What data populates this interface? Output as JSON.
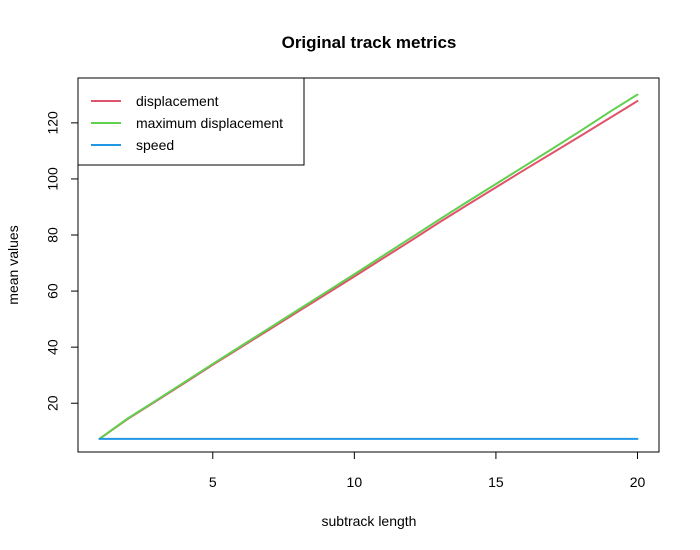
{
  "chart_data": {
    "type": "line",
    "title": "Original track metrics",
    "xlabel": "subtrack length",
    "ylabel": "mean values",
    "xlim": [
      0.24,
      20.76
    ],
    "ylim": [
      2.6,
      136.0
    ],
    "xticks": [
      5,
      10,
      15,
      20
    ],
    "yticks": [
      20,
      40,
      60,
      80,
      100,
      120
    ],
    "grid": false,
    "legend_position": "top-left",
    "x": [
      1,
      2,
      3,
      4,
      5,
      6,
      7,
      8,
      9,
      10,
      11,
      12,
      13,
      14,
      15,
      16,
      17,
      18,
      19,
      20
    ],
    "series": [
      {
        "name": "displacement",
        "color": "#DF536B",
        "values": [
          7.3,
          14.4,
          20.8,
          27.2,
          33.7,
          40.0,
          46.3,
          52.6,
          58.9,
          65.2,
          71.6,
          78.0,
          84.5,
          90.8,
          97.0,
          103.2,
          109.3,
          115.4,
          121.6,
          127.8
        ]
      },
      {
        "name": "maximum displacement",
        "color": "#61D04F",
        "values": [
          7.3,
          14.6,
          21.0,
          27.5,
          34.0,
          40.4,
          46.8,
          53.2,
          59.6,
          66.0,
          72.5,
          79.0,
          85.5,
          91.9,
          98.2,
          104.5,
          110.8,
          117.2,
          123.8,
          130.1
        ]
      },
      {
        "name": "speed",
        "color": "#2297E6",
        "values": [
          7.3,
          7.3,
          7.3,
          7.3,
          7.3,
          7.3,
          7.3,
          7.3,
          7.3,
          7.3,
          7.3,
          7.3,
          7.3,
          7.3,
          7.3,
          7.3,
          7.3,
          7.3,
          7.3,
          7.3
        ]
      }
    ]
  }
}
